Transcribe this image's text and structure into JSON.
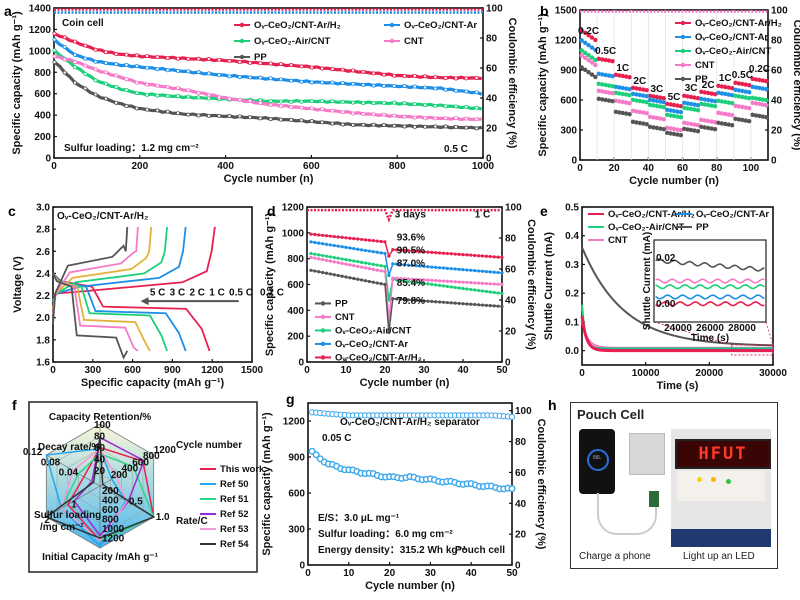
{
  "figure": {
    "panel_labels": [
      "a",
      "b",
      "c",
      "d",
      "e",
      "f",
      "g",
      "h"
    ]
  },
  "colors": {
    "arh2": "#e8204f",
    "ar": "#1e8fe6",
    "air": "#1ccf7a",
    "cnt": "#f57ac8",
    "pp": "#555555",
    "ref50": "#22a6f0",
    "ref51": "#2ed68a",
    "ref52": "#9b2ad6",
    "ref53": "#f59ad2",
    "ref54": "#333333",
    "pouch": "#3aa7ee"
  },
  "chart_data": [
    {
      "id": "a",
      "type": "line",
      "title": "",
      "xlabel": "Cycle number (n)",
      "ylabel": "Specific capacity (mAh g⁻¹)",
      "y2label": "Coulombic efficiency (%)",
      "xlim": [
        0,
        1000
      ],
      "ylim": [
        0,
        1400
      ],
      "y2lim": [
        0,
        100
      ],
      "xticks": [
        0,
        200,
        400,
        600,
        800,
        1000
      ],
      "yticks": [
        0,
        200,
        400,
        600,
        800,
        1000,
        1200,
        1400
      ],
      "y2ticks": [
        0,
        20,
        40,
        60,
        80,
        100
      ],
      "annotations": [
        "Coin cell",
        "Sulfur  loading：1.2 mg cm⁻²",
        "0.5 C"
      ],
      "legend": [
        "Oᵥ-CeO₂/CNT-Ar/H₂",
        "Oᵥ-CeO₂/CNT-Ar",
        "Oᵥ-CeO₂-Air/CNT",
        "CNT",
        "PP"
      ],
      "x": [
        1,
        50,
        100,
        150,
        200,
        300,
        400,
        500,
        600,
        700,
        800,
        900,
        1000
      ],
      "series": [
        {
          "name": "Oᵥ-CeO₂/CNT-Ar/H₂",
          "color_key": "arh2",
          "values": [
            1160,
            1080,
            1010,
            970,
            950,
            930,
            910,
            880,
            850,
            810,
            770,
            750,
            745
          ]
        },
        {
          "name": "Oᵥ-CeO₂/CNT-Ar",
          "color_key": "ar",
          "values": [
            1100,
            960,
            900,
            870,
            850,
            810,
            770,
            740,
            710,
            690,
            670,
            650,
            600
          ]
        },
        {
          "name": "Oᵥ-CeO₂-Air/CNT",
          "color_key": "air",
          "values": [
            1000,
            850,
            720,
            650,
            600,
            570,
            550,
            530,
            530,
            520,
            510,
            490,
            460
          ]
        },
        {
          "name": "CNT",
          "color_key": "cnt",
          "values": [
            950,
            900,
            820,
            760,
            700,
            640,
            560,
            500,
            460,
            420,
            390,
            370,
            360
          ]
        },
        {
          "name": "PP",
          "color_key": "pp",
          "values": [
            900,
            700,
            580,
            510,
            460,
            410,
            390,
            370,
            340,
            310,
            300,
            290,
            280
          ]
        }
      ],
      "ce_series": [
        {
          "name": "Oᵥ-CeO₂/CNT-Ar/H₂",
          "color_key": "arh2",
          "value": 99
        },
        {
          "name": "Oᵥ-CeO₂/CNT-Ar",
          "color_key": "ar",
          "value": 97
        }
      ]
    },
    {
      "id": "b",
      "type": "scatter",
      "xlabel": "Cycle number (n)",
      "ylabel": "Specific capacity (mAh g⁻¹)",
      "y2label": "Coulombic efficiency (%)",
      "xlim": [
        0,
        110
      ],
      "ylim": [
        0,
        1500
      ],
      "y2lim": [
        0,
        100
      ],
      "xticks": [
        0,
        20,
        40,
        60,
        80,
        100
      ],
      "yticks": [
        0,
        300,
        600,
        900,
        1200,
        1500
      ],
      "y2ticks": [
        0,
        20,
        40,
        60,
        80,
        100
      ],
      "rate_labels": [
        {
          "text": "0.2C",
          "x": 5,
          "y": 1260
        },
        {
          "text": "0.5C",
          "x": 15,
          "y": 1060
        },
        {
          "text": "1C",
          "x": 25,
          "y": 890
        },
        {
          "text": "2C",
          "x": 35,
          "y": 760
        },
        {
          "text": "3C",
          "x": 45,
          "y": 680
        },
        {
          "text": "5C",
          "x": 55,
          "y": 600
        },
        {
          "text": "3C",
          "x": 65,
          "y": 690
        },
        {
          "text": "2C",
          "x": 75,
          "y": 720
        },
        {
          "text": "1C",
          "x": 85,
          "y": 790
        },
        {
          "text": "0.5C",
          "x": 95,
          "y": 820
        },
        {
          "text": "0.2C",
          "x": 105,
          "y": 880
        }
      ],
      "legend": [
        "Oᵥ-CeO₂/CNT-Ar/H₂",
        "Oᵥ-CeO₂/CNT-Ar",
        "Oᵥ-CeO₂-Air/CNT",
        "CNT",
        "PP"
      ],
      "step_x": [
        5,
        15,
        25,
        35,
        45,
        55,
        65,
        75,
        85,
        95,
        105
      ],
      "series": [
        {
          "name": "Oᵥ-CeO₂/CNT-Ar/H₂",
          "color_key": "arh2",
          "values": [
            1200,
            1000,
            840,
            710,
            630,
            550,
            630,
            670,
            730,
            760,
            800
          ]
        },
        {
          "name": "Oᵥ-CeO₂/CNT-Ar",
          "color_key": "ar",
          "values": [
            1100,
            850,
            720,
            650,
            590,
            490,
            560,
            600,
            660,
            690,
            720
          ]
        },
        {
          "name": "Oᵥ-CeO₂-Air/CNT",
          "color_key": "air",
          "values": [
            1000,
            750,
            660,
            590,
            540,
            440,
            510,
            550,
            580,
            630,
            610
          ]
        },
        {
          "name": "CNT",
          "color_key": "cnt",
          "values": [
            950,
            680,
            580,
            480,
            420,
            310,
            360,
            390,
            460,
            530,
            560
          ]
        },
        {
          "name": "PP",
          "color_key": "pp",
          "values": [
            830,
            600,
            470,
            370,
            320,
            260,
            300,
            320,
            360,
            400,
            440
          ]
        }
      ]
    },
    {
      "id": "c",
      "type": "line",
      "xlabel": "Specific capacity (mAh g⁻¹)",
      "ylabel": "Voltage (V)",
      "xlim": [
        0,
        1500
      ],
      "ylim": [
        1.6,
        3.0
      ],
      "xticks": [
        0,
        300,
        600,
        900,
        1200,
        1500
      ],
      "yticks": [
        1.6,
        1.8,
        2.0,
        2.2,
        2.4,
        2.6,
        2.8,
        3.0
      ],
      "annotation": "Oᵥ-CeO₂/CNT-Ar/H₂",
      "rate_legend": [
        {
          "text": "5 C",
          "color_key": "pp"
        },
        {
          "text": "3 C",
          "color_key": "cnt"
        },
        {
          "text": "2 C",
          "color": "#e3b23c"
        },
        {
          "text": "1 C",
          "color_key": "air"
        },
        {
          "text": "0.5 C",
          "color_key": "ar"
        },
        {
          "text": "0.2 C",
          "color_key": "arh2"
        }
      ],
      "series": [
        {
          "name": "0.2 C",
          "color_key": "arh2",
          "discharge_cap": 1180,
          "charge_cap": 1220,
          "plateau_lo": 2.1,
          "plateau_hi": 2.32
        },
        {
          "name": "0.5 C",
          "color_key": "ar",
          "discharge_cap": 1000,
          "charge_cap": 1000,
          "plateau_lo": 2.06,
          "plateau_hi": 2.36
        },
        {
          "name": "1 C",
          "color_key": "air",
          "discharge_cap": 860,
          "charge_cap": 860,
          "plateau_lo": 2.04,
          "plateau_hi": 2.4
        },
        {
          "name": "2 C",
          "color": "#e3b23c",
          "discharge_cap": 730,
          "charge_cap": 740,
          "plateau_lo": 1.98,
          "plateau_hi": 2.44
        },
        {
          "name": "3 C",
          "color_key": "cnt",
          "discharge_cap": 640,
          "charge_cap": 640,
          "plateau_lo": 1.93,
          "plateau_hi": 2.49
        },
        {
          "name": "5 C",
          "color_key": "pp",
          "discharge_cap": 560,
          "charge_cap": 560,
          "plateau_lo": 1.84,
          "plateau_hi": 2.55
        }
      ]
    },
    {
      "id": "d",
      "type": "line",
      "xlabel": "Cycle number (n)",
      "ylabel": "Specific capacity (mAh g⁻¹)",
      "y2label": "Coulombic efficiency (%)",
      "xlim": [
        0,
        50
      ],
      "ylim": [
        0,
        1200
      ],
      "y2lim": [
        0,
        100
      ],
      "xticks": [
        0,
        10,
        20,
        30,
        40,
        50
      ],
      "yticks": [
        0,
        200,
        400,
        600,
        800,
        1000,
        1200
      ],
      "y2ticks": [
        0,
        20,
        40,
        60,
        80,
        100
      ],
      "annotations": [
        "3 days",
        "1 C"
      ],
      "retention_labels": [
        {
          "text": "93.6%",
          "color_key": "arh2",
          "y": 940
        },
        {
          "text": "90.5%",
          "color_key": "ar",
          "y": 840
        },
        {
          "text": "87.0%",
          "color_key": "air",
          "y": 740
        },
        {
          "text": "85.4%",
          "color_key": "cnt",
          "y": 590
        },
        {
          "text": "79.8%",
          "color_key": "pp",
          "y": 450
        }
      ],
      "legend": [
        "PP",
        "CNT",
        "Oᵥ-CeO₂-Air/CNT",
        "Oᵥ-CeO₂/CNT-Ar",
        "Oᵥ-CeO₂/CNT-Ar/H₂"
      ],
      "series": [
        {
          "name": "Oᵥ-CeO₂/CNT-Ar/H₂",
          "color_key": "arh2",
          "start": 990,
          "pre": 930,
          "dip": 820,
          "post": 870,
          "end": 810
        },
        {
          "name": "Oᵥ-CeO₂/CNT-Ar",
          "color_key": "ar",
          "start": 930,
          "pre": 840,
          "dip": 670,
          "post": 760,
          "end": 690
        },
        {
          "name": "Oᵥ-CeO₂-Air/CNT",
          "color_key": "air",
          "start": 840,
          "pre": 740,
          "dip": 480,
          "post": 640,
          "end": 530
        },
        {
          "name": "CNT",
          "color_key": "cnt",
          "start": 810,
          "pre": 700,
          "dip": 320,
          "post": 650,
          "end": 600
        },
        {
          "name": "PP",
          "color_key": "pp",
          "start": 710,
          "pre": 600,
          "dip": 230,
          "post": 490,
          "end": 430
        }
      ]
    },
    {
      "id": "e",
      "type": "line",
      "xlabel": "Time (s)",
      "ylabel": "Shuttle Current (mA)",
      "xlim": [
        0,
        30000
      ],
      "ylim": [
        -0.05,
        0.5
      ],
      "xticks": [
        0,
        10000,
        20000,
        30000
      ],
      "yticks": [
        0.0,
        0.1,
        0.2,
        0.3,
        0.4,
        0.5
      ],
      "legend": [
        "Oᵥ-CeO₂/CNT-Ar/H₂",
        "Oᵥ-CeO₂/CNT-Ar",
        "Oᵥ-CeO₂-Air/CNT",
        "PP",
        "CNT"
      ],
      "series": [
        {
          "name": "PP",
          "color_key": "pp",
          "start": 0.36,
          "end": 0.015,
          "tau": 6500
        },
        {
          "name": "CNT",
          "color_key": "cnt",
          "start": 0.1,
          "end": 0.01,
          "tau": 900
        },
        {
          "name": "Oᵥ-CeO₂-Air/CNT",
          "color_key": "air",
          "start": 0.16,
          "end": 0.008,
          "tau": 500
        },
        {
          "name": "Oᵥ-CeO₂/CNT-Ar",
          "color_key": "ar",
          "start": 0.12,
          "end": 0.003,
          "tau": 700
        },
        {
          "name": "Oᵥ-CeO₂/CNT-Ar/H₂",
          "color_key": "arh2",
          "start": 0.12,
          "end": 0.0,
          "tau": 700
        }
      ],
      "inset": {
        "xlabel": "Time (s)",
        "ylabel": "Shuttle Current (mA)",
        "xticks": [
          24000,
          26000,
          28000
        ],
        "yticks": [
          0.0,
          0.02
        ],
        "xlim": [
          22500,
          29500
        ],
        "ylim": [
          -0.008,
          0.028
        ],
        "levels": [
          {
            "color_key": "pp",
            "start": 0.019,
            "end": 0.015
          },
          {
            "color_key": "cnt",
            "start": 0.01,
            "end": 0.01
          },
          {
            "color_key": "air",
            "start": 0.0075,
            "end": 0.0075
          },
          {
            "color_key": "ar",
            "start": 0.003,
            "end": 0.003
          },
          {
            "color_key": "arh2",
            "start": 0.0,
            "end": 0.0
          }
        ]
      }
    },
    {
      "id": "f",
      "type": "radar",
      "axes": [
        "Capacity Retention/%",
        "Cycle number",
        "Rate/C",
        "Initial Capacity /mAh g⁻¹",
        "Sulfur loading /mg cm⁻²",
        "Decay rate/%"
      ],
      "axis_ticks": {
        "Capacity Retention/%": [
          "20",
          "40",
          "60",
          "80",
          "100"
        ],
        "Cycle number": [
          "200",
          "400",
          "600",
          "800",
          "1200"
        ],
        "Rate/C": [
          "0.5",
          "1.0"
        ],
        "Initial Capacity /mAh g⁻¹": [
          "200",
          "400",
          "600",
          "800",
          "1000",
          "1200"
        ],
        "Sulfur loading /mg cm⁻²": [
          "1",
          "2"
        ],
        "Decay rate/%": [
          "0.04",
          "0.08",
          "0.12"
        ]
      },
      "series": [
        {
          "name": "This work",
          "color_key": "arh2",
          "values": [
            0.62,
            0.8,
            1.0,
            0.88,
            0.6,
            0.3
          ]
        },
        {
          "name": "Ref 50",
          "color_key": "ref50",
          "values": [
            0.6,
            0.22,
            0.48,
            0.97,
            0.72,
            1.0
          ]
        },
        {
          "name": "Ref 51",
          "color_key": "ref51",
          "values": [
            0.52,
            0.62,
            1.0,
            0.88,
            0.72,
            0.4
          ]
        },
        {
          "name": "Ref 52",
          "color_key": "ref52",
          "values": [
            0.78,
            0.82,
            0.52,
            0.8,
            0.48,
            0.15
          ]
        },
        {
          "name": "Ref 53",
          "color_key": "ref53",
          "values": [
            0.6,
            0.3,
            0.5,
            0.88,
            0.72,
            0.5
          ]
        },
        {
          "name": "Ref 54",
          "color_key": "ref54",
          "values": [
            0.78,
            0.05,
            1.0,
            0.84,
            1.0,
            0.12
          ]
        }
      ]
    },
    {
      "id": "g",
      "type": "scatter",
      "xlabel": "Cycle number (n)",
      "ylabel": "Specific capacity (mAh g⁻¹)",
      "y2label": "Coulombic efficiency (%)",
      "xlim": [
        0,
        50
      ],
      "ylim": [
        0,
        1350
      ],
      "y2lim": [
        0,
        105
      ],
      "xticks": [
        0,
        10,
        20,
        30,
        40,
        50
      ],
      "yticks": [
        0,
        300,
        600,
        900,
        1200
      ],
      "y2ticks": [
        0,
        20,
        40,
        60,
        80,
        100
      ],
      "title": "Oᵥ-CeO₂/CNT-Ar/H₂ separator",
      "annotations": [
        "0.05 C",
        "E/S：3.0 μL mg⁻¹",
        "Sulfur loading：6.0 mg cm⁻²",
        "Energy density：315.2 Wh kg⁻¹",
        "Pouch cell"
      ],
      "x": [
        1,
        5,
        10,
        15,
        20,
        25,
        30,
        35,
        40,
        45,
        50
      ],
      "capacity": [
        940,
        840,
        790,
        760,
        730,
        730,
        710,
        690,
        670,
        650,
        630
      ],
      "ce": [
        99,
        98,
        97,
        97,
        97,
        97,
        97,
        97,
        97,
        97,
        96
      ]
    }
  ],
  "panel_h": {
    "title": "Pouch Cell",
    "captions": [
      "Charge a phone",
      "Light up an LED"
    ],
    "led_text": "HFUT",
    "phone_text": "88L"
  }
}
